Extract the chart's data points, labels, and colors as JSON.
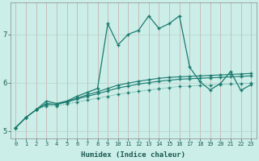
{
  "xlabel": "Humidex (Indice chaleur)",
  "background_color": "#cceee8",
  "grid_color": "#b8d8d2",
  "line_color": "#1a7a6e",
  "xlim": [
    -0.5,
    23.5
  ],
  "ylim": [
    4.85,
    7.65
  ],
  "xticks": [
    0,
    1,
    2,
    3,
    4,
    5,
    6,
    7,
    8,
    9,
    10,
    11,
    12,
    13,
    14,
    15,
    16,
    17,
    18,
    19,
    20,
    21,
    22,
    23
  ],
  "yticks": [
    5,
    6,
    7
  ],
  "series": [
    [
      5.07,
      5.28,
      5.44,
      5.52,
      5.52,
      5.56,
      5.6,
      5.64,
      5.68,
      5.72,
      5.76,
      5.79,
      5.82,
      5.85,
      5.87,
      5.9,
      5.92,
      5.93,
      5.94,
      5.95,
      5.96,
      5.97,
      5.98,
      5.99
    ],
    [
      5.07,
      5.28,
      5.44,
      5.55,
      5.55,
      5.6,
      5.66,
      5.72,
      5.77,
      5.83,
      5.89,
      5.93,
      5.97,
      6.0,
      6.03,
      6.05,
      6.07,
      6.08,
      6.09,
      6.1,
      6.11,
      6.12,
      6.13,
      6.14
    ],
    [
      5.07,
      5.28,
      5.44,
      5.57,
      5.55,
      5.61,
      5.68,
      5.75,
      5.81,
      5.88,
      5.95,
      5.99,
      6.03,
      6.06,
      6.09,
      6.11,
      6.12,
      6.13,
      6.14,
      6.15,
      6.16,
      6.17,
      6.18,
      6.19
    ],
    [
      5.07,
      5.28,
      5.44,
      5.62,
      5.57,
      5.62,
      5.72,
      5.8,
      5.88,
      7.22,
      6.78,
      7.0,
      7.08,
      7.38,
      7.12,
      7.22,
      7.38,
      6.32,
      6.02,
      5.85,
      5.98,
      6.23,
      5.84,
      5.96
    ]
  ]
}
